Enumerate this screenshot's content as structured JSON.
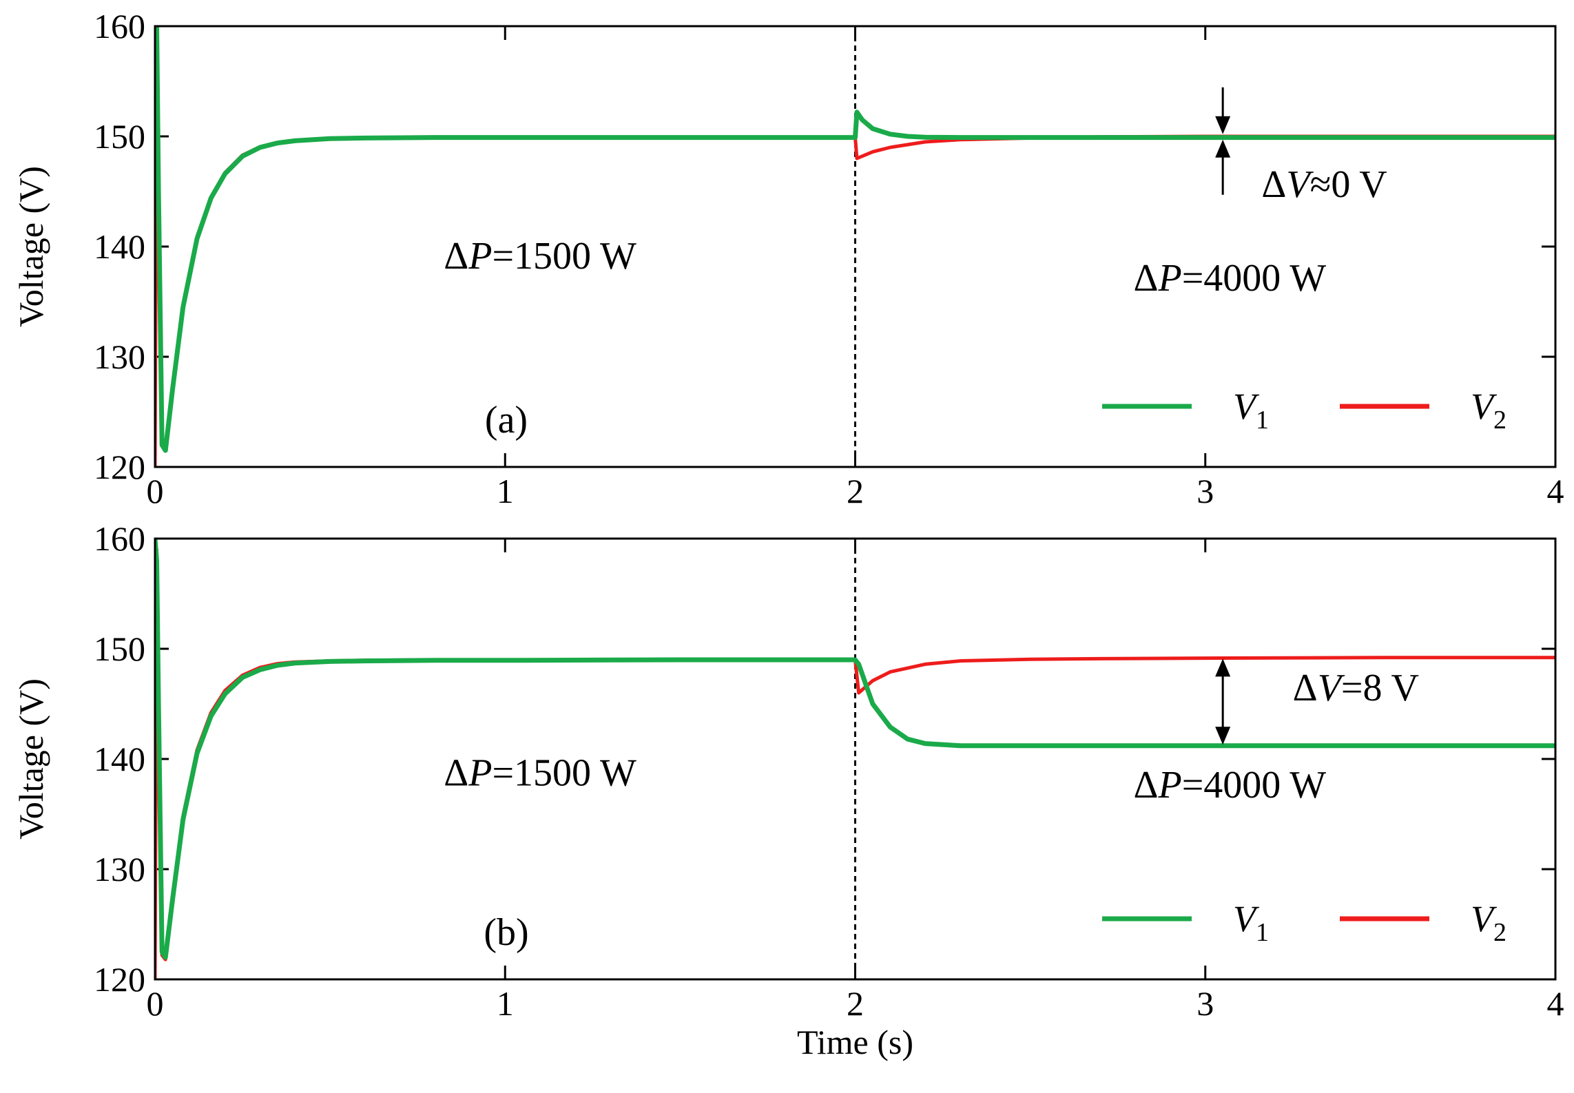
{
  "chart_data": [
    {
      "type": "line",
      "panel_label": "(a)",
      "xlabel": "",
      "ylabel": "Voltage (V)",
      "xlim": [
        0,
        4
      ],
      "ylim": [
        120,
        160
      ],
      "xticks": [
        "0",
        "1",
        "2",
        "3",
        "4"
      ],
      "yticks": [
        "120",
        "130",
        "140",
        "150",
        "160"
      ],
      "legend_position": "bottom-right",
      "event_line_x": 2,
      "annotations": [
        {
          "text": "ΔP=1500 W",
          "at_x": 1.1,
          "at_y": 138
        },
        {
          "text": "ΔP=4000 W",
          "at_x": 3.07,
          "at_y": 136
        },
        {
          "text": "ΔV≈0 V",
          "at_x": 3.34,
          "at_y": 144.5
        }
      ],
      "series": [
        {
          "name": "V1",
          "color": "#1aaa4a",
          "x": [
            0,
            0.005,
            0.01,
            0.02,
            0.03,
            0.05,
            0.08,
            0.12,
            0.16,
            0.2,
            0.25,
            0.3,
            0.35,
            0.4,
            0.5,
            0.6,
            0.8,
            1.0,
            1.5,
            2.0,
            2.005,
            2.02,
            2.05,
            2.1,
            2.15,
            2.2,
            2.3,
            2.5,
            3.0,
            3.5,
            4.0
          ],
          "values": [
            160,
            160,
            145,
            122,
            121.5,
            127,
            134.5,
            140.7,
            144.4,
            146.6,
            148.2,
            149.0,
            149.4,
            149.6,
            149.8,
            149.85,
            149.9,
            149.9,
            149.9,
            149.9,
            152.2,
            151.5,
            150.7,
            150.2,
            150.0,
            149.92,
            149.9,
            149.9,
            149.9,
            149.9,
            149.9
          ]
        },
        {
          "name": "V2",
          "color": "#ee1c1c",
          "x": [
            0,
            0.005,
            0.01,
            0.02,
            0.03,
            0.05,
            0.08,
            0.12,
            0.16,
            0.2,
            0.25,
            0.3,
            0.35,
            0.4,
            0.5,
            0.6,
            0.8,
            1.0,
            1.5,
            2.0,
            2.005,
            2.05,
            2.1,
            2.2,
            2.3,
            2.5,
            2.7,
            3.0,
            3.5,
            4.0
          ],
          "values": [
            120,
            158,
            145,
            122.3,
            121.7,
            127.2,
            134.7,
            140.9,
            144.5,
            146.7,
            148.3,
            149.05,
            149.45,
            149.65,
            149.8,
            149.85,
            149.9,
            149.9,
            149.9,
            149.9,
            148.0,
            148.6,
            149.0,
            149.5,
            149.7,
            149.85,
            149.95,
            150.0,
            150.0,
            150.0
          ]
        }
      ]
    },
    {
      "type": "line",
      "panel_label": "(b)",
      "xlabel": "Time (s)",
      "ylabel": "Voltage (V)",
      "xlim": [
        0,
        4
      ],
      "ylim": [
        120,
        160
      ],
      "xticks": [
        "0",
        "1",
        "2",
        "3",
        "4"
      ],
      "yticks": [
        "120",
        "130",
        "140",
        "150",
        "160"
      ],
      "legend_position": "bottom-right",
      "event_line_x": 2,
      "annotations": [
        {
          "text": "ΔP=1500 W",
          "at_x": 1.1,
          "at_y": 137.6
        },
        {
          "text": "ΔP=4000 W",
          "at_x": 3.07,
          "at_y": 136.5
        },
        {
          "text": "ΔV=8 V",
          "at_x": 3.43,
          "at_y": 145.3
        }
      ],
      "series": [
        {
          "name": "V1",
          "color": "#1aaa4a",
          "x": [
            0,
            0.005,
            0.01,
            0.02,
            0.03,
            0.05,
            0.08,
            0.12,
            0.16,
            0.2,
            0.25,
            0.3,
            0.35,
            0.4,
            0.5,
            0.6,
            0.8,
            1.0,
            1.5,
            2.0,
            2.01,
            2.05,
            2.1,
            2.15,
            2.2,
            2.3,
            2.5,
            3.0,
            3.5,
            4.0
          ],
          "values": [
            160,
            158,
            145,
            122.5,
            122,
            127.2,
            134.5,
            140.5,
            143.9,
            145.9,
            147.4,
            148.1,
            148.5,
            148.7,
            148.85,
            148.9,
            148.95,
            148.95,
            149.0,
            149.0,
            148.6,
            145.0,
            142.9,
            141.8,
            141.4,
            141.2,
            141.2,
            141.2,
            141.2,
            141.2
          ]
        },
        {
          "name": "V2",
          "color": "#ee1c1c",
          "x": [
            0,
            0.005,
            0.01,
            0.02,
            0.03,
            0.05,
            0.08,
            0.12,
            0.16,
            0.2,
            0.25,
            0.3,
            0.35,
            0.4,
            0.5,
            0.6,
            0.8,
            1.0,
            1.5,
            2.0,
            2.01,
            2.05,
            2.1,
            2.2,
            2.3,
            2.5,
            2.7,
            3.0,
            3.5,
            4.0
          ],
          "values": [
            120,
            159,
            145,
            122.2,
            121.8,
            127.0,
            134.8,
            140.8,
            144.2,
            146.2,
            147.6,
            148.3,
            148.65,
            148.8,
            148.9,
            148.95,
            149.0,
            149.0,
            149.0,
            149.0,
            146.0,
            147.1,
            147.9,
            148.6,
            148.9,
            149.05,
            149.1,
            149.15,
            149.2,
            149.2
          ]
        }
      ]
    }
  ]
}
